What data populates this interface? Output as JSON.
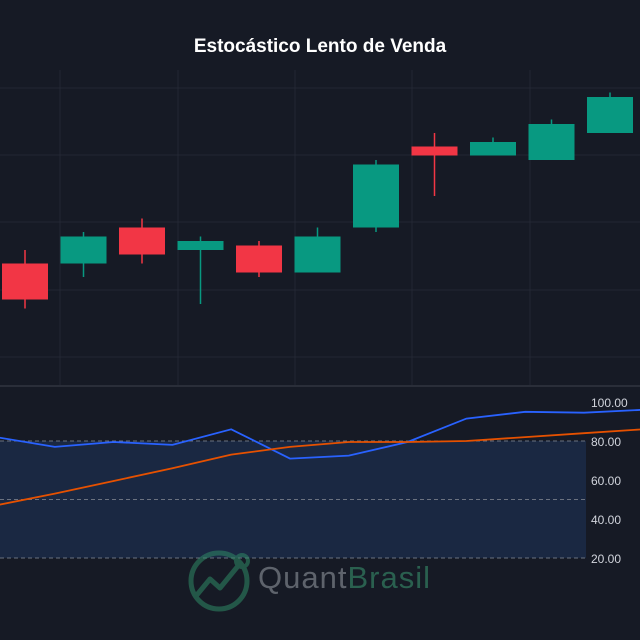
{
  "chart_data": [
    {
      "type": "candlestick",
      "title": "Estocástico Lento de Venda",
      "candles": [
        {
          "open": 80.5,
          "high": 82.0,
          "low": 75.5,
          "close": 76.5,
          "color": "#f23645"
        },
        {
          "open": 80.5,
          "high": 84.0,
          "low": 79.0,
          "close": 83.5,
          "color": "#089981"
        },
        {
          "open": 84.5,
          "high": 85.5,
          "low": 80.5,
          "close": 81.5,
          "color": "#f23645"
        },
        {
          "open": 82.0,
          "high": 83.5,
          "low": 76.0,
          "close": 83.0,
          "color": "#089981"
        },
        {
          "open": 82.5,
          "high": 83.0,
          "low": 79.0,
          "close": 79.5,
          "color": "#f23645"
        },
        {
          "open": 79.5,
          "high": 84.5,
          "low": 79.5,
          "close": 83.5,
          "color": "#089981"
        },
        {
          "open": 84.5,
          "high": 92.0,
          "low": 84.0,
          "close": 91.5,
          "color": "#089981"
        },
        {
          "open": 93.5,
          "high": 95.0,
          "low": 88.0,
          "close": 92.5,
          "color": "#f23645"
        },
        {
          "open": 92.5,
          "high": 94.5,
          "low": 92.5,
          "close": 94.0,
          "color": "#089981"
        },
        {
          "open": 92.0,
          "high": 96.5,
          "low": 92.0,
          "close": 96.0,
          "color": "#089981"
        },
        {
          "open": 95.0,
          "high": 99.5,
          "low": 95.0,
          "close": 99.0,
          "color": "#089981"
        }
      ],
      "ylim": [
        67,
        102
      ]
    },
    {
      "type": "line",
      "y_ticks": [
        "100.00",
        "80.00",
        "60.00",
        "40.00",
        "20.00"
      ],
      "ylim": [
        20,
        100
      ],
      "overbought": 80,
      "levels": [
        80,
        50,
        20
      ],
      "series": [
        {
          "color": "#2962ff",
          "values": [
            82,
            77,
            79.5,
            78,
            86,
            71,
            72.5,
            79.5,
            91.5,
            95,
            94.5,
            96
          ]
        },
        {
          "color": "#e65100",
          "values": [
            47,
            53,
            59.5,
            66,
            73,
            77,
            79.5,
            79.5,
            80,
            82,
            84,
            86
          ]
        }
      ]
    }
  ],
  "colors": {
    "up": "#089981",
    "down": "#f23645",
    "grid": "#232734",
    "zone_fill": "#1c2c4a",
    "axis_text": "#d1d4dc"
  },
  "logo": {
    "word1": "Quant",
    "word2": "Brasil"
  }
}
